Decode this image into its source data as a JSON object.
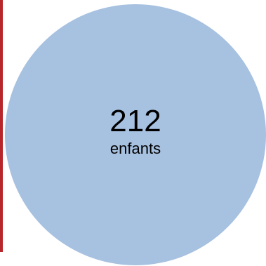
{
  "bubble": {
    "count": "212",
    "unit": "enfants",
    "fill_color": "#a7c1e0",
    "border_color": "#b7262a"
  }
}
